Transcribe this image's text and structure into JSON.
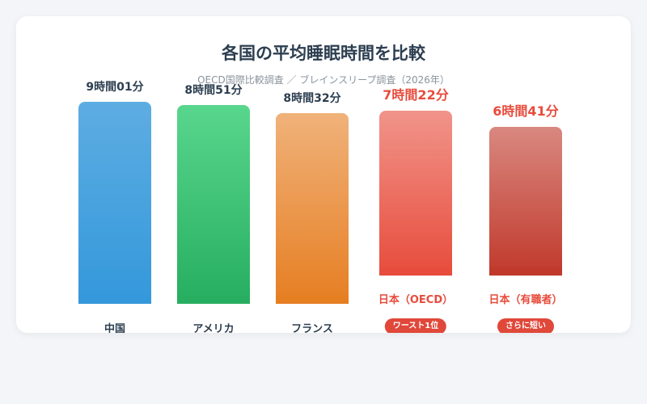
{
  "chart_data": {
    "type": "bar",
    "title": "各国の平均睡眠時間を比較",
    "subtitle": "OECD国際比較調査 ／ ブレインスリープ調査（2026年）",
    "unit": "minutes",
    "categories": [
      "中国",
      "アメリカ",
      "フランス",
      "日本（OECD）",
      "日本（有職者）"
    ],
    "values": [
      541,
      531,
      512,
      442,
      401
    ],
    "value_labels": [
      "9時間01分",
      "8時間51分",
      "8時間32分",
      "7時間22分",
      "6時間41分"
    ],
    "badges": [
      "",
      "",
      "",
      "ワースト1位",
      "さらに短い"
    ],
    "highlight": [
      false,
      false,
      false,
      true,
      true
    ],
    "colors": {
      "bar_top": [
        "#5dade2",
        "#58d68d",
        "#f0b27a",
        "#f1948a",
        "#d98880"
      ],
      "bar_bottom": [
        "#3498db",
        "#27ae60",
        "#e67e22",
        "#e74c3c",
        "#c0392b"
      ],
      "value_text": [
        "#2c3e50",
        "#2c3e50",
        "#2c3e50",
        "#e74c3c",
        "#e74c3c"
      ],
      "label_text": [
        "#2c3e50",
        "#2c3e50",
        "#2c3e50",
        "#e74c3c",
        "#e74c3c"
      ]
    }
  }
}
